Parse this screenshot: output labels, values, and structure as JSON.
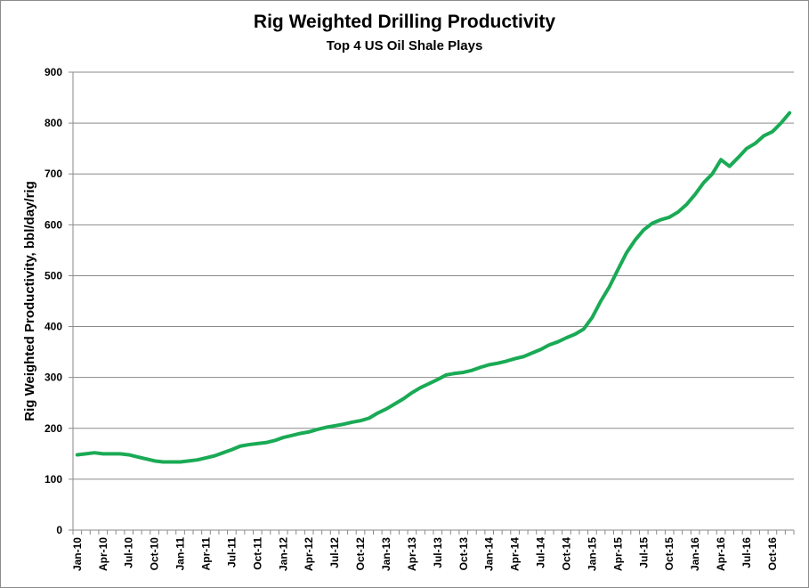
{
  "chart_data": {
    "type": "line",
    "title": "Rig Weighted Drilling Productivity",
    "subtitle": "Top 4 US Oil Shale Plays",
    "xlabel": "",
    "ylabel": "Rig Weighted Productivity, bbl/day/rig",
    "ylim": [
      0,
      900
    ],
    "yticks": [
      0,
      100,
      200,
      300,
      400,
      500,
      600,
      700,
      800,
      900
    ],
    "grid": true,
    "legend": "none",
    "series_color": "#1aaa55",
    "x_tick_labels": [
      "Jan-10",
      "Apr-10",
      "Jul-10",
      "Oct-10",
      "Jan-11",
      "Apr-11",
      "Jul-11",
      "Oct-11",
      "Jan-12",
      "Apr-12",
      "Jul-12",
      "Oct-12",
      "Jan-13",
      "Apr-13",
      "Jul-13",
      "Oct-13",
      "Jan-14",
      "Apr-14",
      "Jul-14",
      "Oct-14",
      "Jan-15",
      "Apr-15",
      "Jul-15",
      "Oct-15",
      "Jan-16",
      "Apr-16",
      "Jul-16",
      "Oct-16"
    ],
    "x": [
      "Jan-10",
      "Feb-10",
      "Mar-10",
      "Apr-10",
      "May-10",
      "Jun-10",
      "Jul-10",
      "Aug-10",
      "Sep-10",
      "Oct-10",
      "Nov-10",
      "Dec-10",
      "Jan-11",
      "Feb-11",
      "Mar-11",
      "Apr-11",
      "May-11",
      "Jun-11",
      "Jul-11",
      "Aug-11",
      "Sep-11",
      "Oct-11",
      "Nov-11",
      "Dec-11",
      "Jan-12",
      "Feb-12",
      "Mar-12",
      "Apr-12",
      "May-12",
      "Jun-12",
      "Jul-12",
      "Aug-12",
      "Sep-12",
      "Oct-12",
      "Nov-12",
      "Dec-12",
      "Jan-13",
      "Feb-13",
      "Mar-13",
      "Apr-13",
      "May-13",
      "Jun-13",
      "Jul-13",
      "Aug-13",
      "Sep-13",
      "Oct-13",
      "Nov-13",
      "Dec-13",
      "Jan-14",
      "Feb-14",
      "Mar-14",
      "Apr-14",
      "May-14",
      "Jun-14",
      "Jul-14",
      "Aug-14",
      "Sep-14",
      "Oct-14",
      "Nov-14",
      "Dec-14",
      "Jan-15",
      "Feb-15",
      "Mar-15",
      "Apr-15",
      "May-15",
      "Jun-15",
      "Jul-15",
      "Aug-15",
      "Sep-15",
      "Oct-15",
      "Nov-15",
      "Dec-15",
      "Jan-16",
      "Feb-16",
      "Mar-16",
      "Apr-16",
      "May-16",
      "Jun-16",
      "Jul-16",
      "Aug-16",
      "Sep-16",
      "Oct-16",
      "Nov-16",
      "Dec-16"
    ],
    "series": [
      {
        "values": [
          148,
          150,
          152,
          150,
          150,
          150,
          148,
          144,
          140,
          136,
          134,
          134,
          134,
          136,
          138,
          142,
          146,
          152,
          158,
          165,
          168,
          170,
          172,
          176,
          182,
          186,
          190,
          193,
          198,
          202,
          205,
          208,
          212,
          215,
          220,
          230,
          238,
          248,
          258,
          270,
          280,
          288,
          296,
          305,
          308,
          310,
          314,
          320,
          325,
          328,
          332,
          337,
          341,
          348,
          355,
          364,
          370,
          378,
          385,
          395,
          418,
          450,
          478,
          512,
          545,
          570,
          590,
          603,
          610,
          615,
          625,
          640,
          660,
          683,
          700,
          728,
          715,
          732,
          750,
          760,
          775,
          783,
          800,
          820
        ]
      }
    ]
  }
}
